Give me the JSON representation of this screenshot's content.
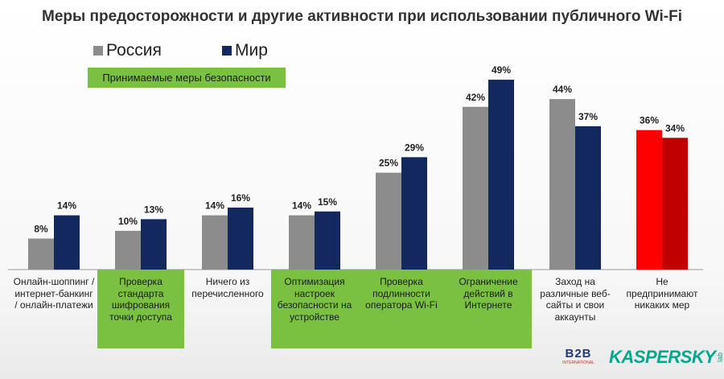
{
  "chart_data": {
    "type": "bar",
    "title": "Меры предосторожности и другие активности при использовании публичного Wi-Fi",
    "legend_position": "top-left",
    "annotation": "Принимаемые меры безопасности",
    "ylim": [
      0,
      60
    ],
    "categories": [
      {
        "lines": [
          "Онлайн-шоппинг /",
          "интернет-банкинг",
          "/ онлайн-платежи"
        ],
        "highlighted": false
      },
      {
        "lines": [
          "Проверка",
          "стандарта",
          "шифрования",
          "точки доступа"
        ],
        "highlighted": true
      },
      {
        "lines": [
          "Ничего из",
          "перечисленного"
        ],
        "highlighted": false
      },
      {
        "lines": [
          "Оптимизация",
          "настроек",
          "безопасности на",
          "устройстве"
        ],
        "highlighted": true
      },
      {
        "lines": [
          "Проверка",
          "подлинности",
          "оператора Wi-Fi"
        ],
        "highlighted": true
      },
      {
        "lines": [
          "Ограничение",
          "действий в",
          "Интернете"
        ],
        "highlighted": true
      },
      {
        "lines": [
          "Заход на",
          "различные веб-",
          "сайты и свои",
          "аккаунты"
        ],
        "highlighted": false
      },
      {
        "lines": [
          "Не",
          "предпринимают",
          "никаких мер"
        ],
        "highlighted": false
      }
    ],
    "series": [
      {
        "name": "Россия",
        "color": "#8c8c8c",
        "values": [
          8,
          10,
          14,
          14,
          25,
          42,
          44,
          36
        ],
        "labels": [
          "8%",
          "10%",
          "14%",
          "14%",
          "25%",
          "42%",
          "44%",
          "36%"
        ]
      },
      {
        "name": "Мир",
        "color": "#13285e",
        "values": [
          14,
          13,
          16,
          15,
          29,
          49,
          37,
          34
        ],
        "labels": [
          "14%",
          "13%",
          "16%",
          "15%",
          "29%",
          "49%",
          "37%",
          "34%"
        ]
      }
    ],
    "special_colors": {
      "last_category": [
        "#ff0000",
        "#c00000"
      ]
    }
  },
  "logos": {
    "b2b_text": "B2B",
    "b2b_sub": "INTERNATIONAL",
    "kaspersky_text": "KASPERSKY",
    "kaspersky_sub": "lab"
  },
  "colors": {
    "highlight": "#7ac142",
    "russia": "#8c8c8c",
    "world": "#13285e"
  }
}
